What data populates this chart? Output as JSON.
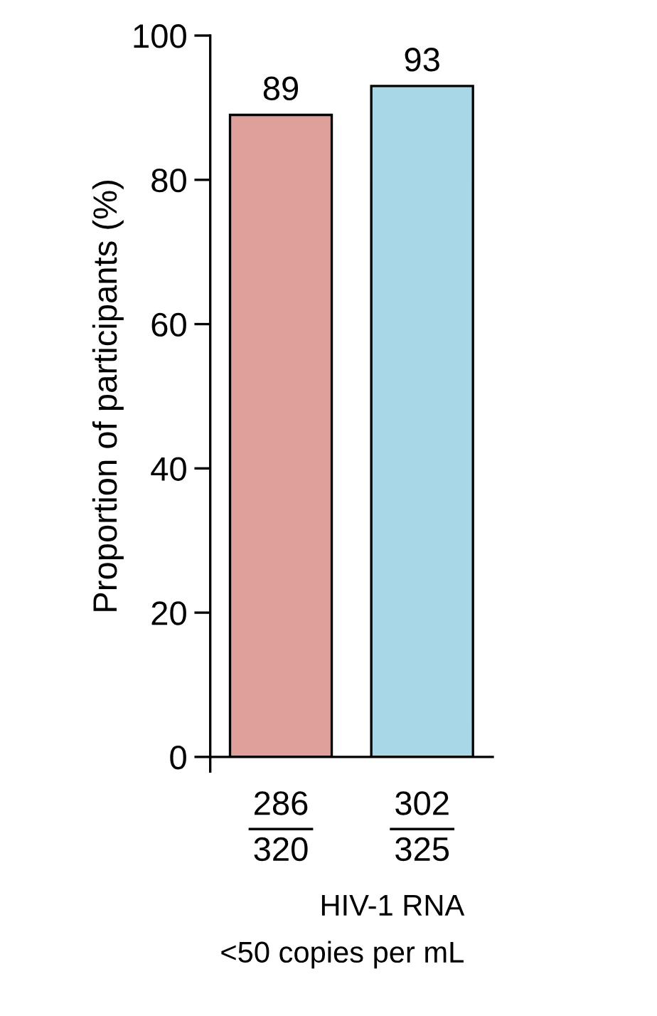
{
  "chart_data": {
    "type": "bar",
    "ylabel": "Proportion of participants (%)",
    "categories": [
      "286\n320",
      "302\n325"
    ],
    "values": [
      89,
      93
    ],
    "colors": [
      "#dfa09c",
      "#a8d8e8"
    ],
    "ylim": [
      0,
      100
    ],
    "yticks": [
      0,
      20,
      40,
      60,
      80,
      100
    ],
    "data_labels": true,
    "grid": false,
    "legend": false,
    "annotations": [
      "HIV-1 RNA\n<50 copies per mL"
    ]
  }
}
